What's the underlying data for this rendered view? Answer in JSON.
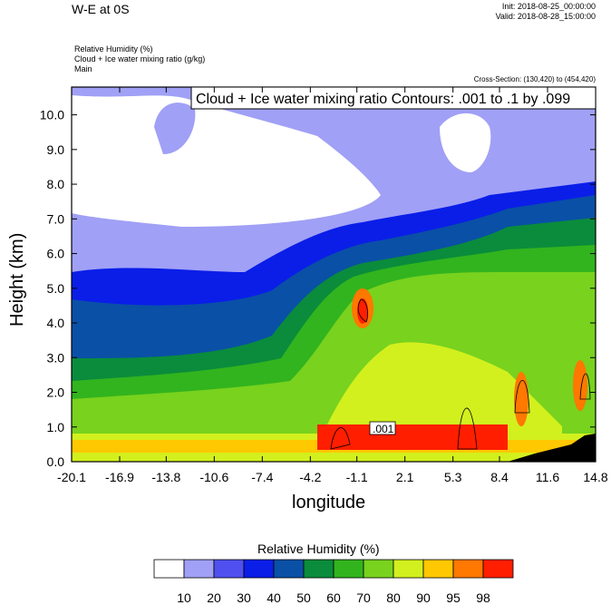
{
  "header": {
    "title": "W-E at 0S",
    "init": "Init: 2018-08-25_00:00:00",
    "valid": "Valid: 2018-08-28_15:00:00",
    "var1": "Relative Humidity   (%)",
    "var2": "Cloud + Ice water mixing ratio   (g/kg)",
    "var3": "Main",
    "cross_section": "Cross-Section: (130,420) to (454,420)"
  },
  "chart_data": {
    "type": "heatmap",
    "xlabel": "longitude",
    "ylabel": "Height (km)",
    "x_ticks": [
      "-20.1",
      "-16.9",
      "-13.8",
      "-10.6",
      "-7.4",
      "-4.2",
      "-1.1",
      "2.1",
      "5.3",
      "8.4",
      "11.6",
      "14.8"
    ],
    "y_ticks": [
      "0.0",
      "1.0",
      "2.0",
      "3.0",
      "4.0",
      "5.0",
      "6.0",
      "7.0",
      "8.0",
      "9.0",
      "10.0"
    ],
    "xlim": [
      -20.1,
      14.8
    ],
    "ylim": [
      0,
      10.8
    ],
    "contour_note": "Cloud + Ice water mixing ratio Contours: .001 to .1 by .099",
    "contour_label": ".001",
    "colorbar": {
      "title": "Relative Humidity  (%)",
      "levels": [
        "10",
        "20",
        "30",
        "40",
        "50",
        "60",
        "70",
        "80",
        "90",
        "95",
        "98"
      ],
      "colors": [
        "#ffffff",
        "#a0a0f6",
        "#5050f0",
        "#0a1ee8",
        "#0a50a6",
        "#0a8c3c",
        "#32b41e",
        "#78d21e",
        "#d2f01e",
        "#ffc800",
        "#ff7800",
        "#ff1e00"
      ]
    }
  }
}
